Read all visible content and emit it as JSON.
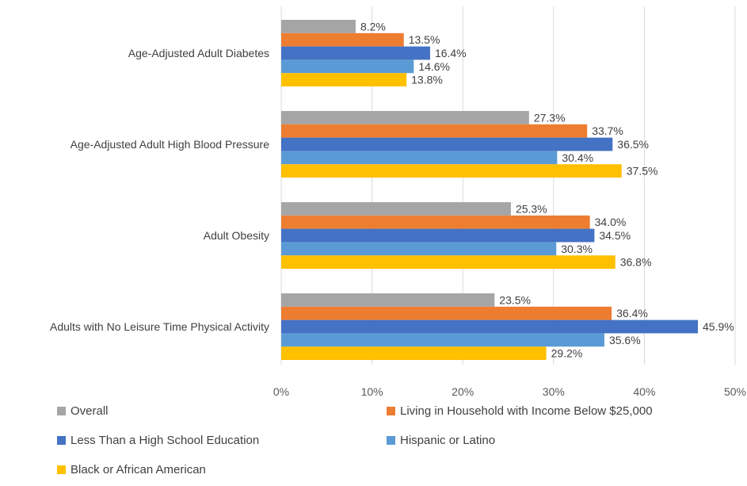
{
  "chart_data": {
    "type": "bar",
    "orientation": "horizontal",
    "categories": [
      "Age-Adjusted Adult Diabetes",
      "Age-Adjusted Adult High Blood Pressure",
      "Adult Obesity",
      "Adults with No Leisure Time Physical Activity"
    ],
    "series": [
      {
        "name": "Overall",
        "color": "#A5A5A5",
        "values": [
          8.2,
          27.3,
          25.3,
          23.5
        ],
        "labels": [
          "8.2%",
          "27.3%",
          "25.3%",
          "23.5%"
        ]
      },
      {
        "name": "Living in Household with Income Below $25,000",
        "color": "#ED7D31",
        "values": [
          13.5,
          33.7,
          34.0,
          36.4
        ],
        "labels": [
          "13.5%",
          "33.7%",
          "34.0%",
          "36.4%"
        ]
      },
      {
        "name": "Less Than a High School Education",
        "color": "#4472C4",
        "values": [
          16.4,
          36.5,
          34.5,
          45.9
        ],
        "labels": [
          "16.4%",
          "36.5%",
          "34.5%",
          "45.9%"
        ]
      },
      {
        "name": "Hispanic or Latino",
        "color": "#5B9BD5",
        "values": [
          14.6,
          30.4,
          30.3,
          35.6
        ],
        "labels": [
          "14.6%",
          "30.4%",
          "30.3%",
          "35.6%"
        ]
      },
      {
        "name": "Black or African American",
        "color": "#FFC000",
        "values": [
          13.8,
          37.5,
          36.8,
          29.2
        ],
        "labels": [
          "13.8%",
          "37.5%",
          "36.8%",
          "29.2%"
        ]
      }
    ],
    "xlim": [
      0,
      50
    ],
    "xticks": [
      0,
      10,
      20,
      30,
      40,
      50
    ],
    "xtick_labels": [
      "0%",
      "10%",
      "20%",
      "30%",
      "40%",
      "50%"
    ],
    "grid": true,
    "legend_position": "bottom",
    "title": "",
    "xlabel": "",
    "ylabel": ""
  }
}
